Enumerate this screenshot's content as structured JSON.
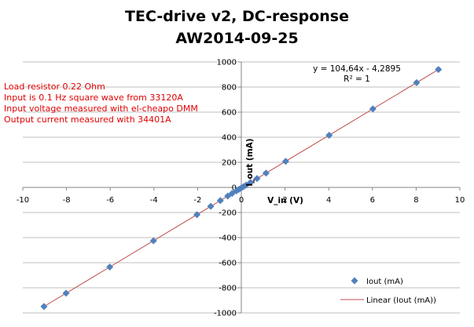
{
  "title": {
    "line1": "TEC-drive v2, DC-response",
    "line2": "AW2014-09-25"
  },
  "notes": [
    "Load resistor 0.22 Ohm",
    "Input is 0.1 Hz square wave from 33120A",
    "Input voltage measured with el-cheapo DMM",
    "Output current measured with 34401A"
  ],
  "trendline_label": {
    "equation": "y = 104,64x - 4,2895",
    "r_squared": "R² = 1"
  },
  "chart_data": {
    "type": "scatter",
    "xlabel": "V_in (V)",
    "ylabel": "I_out (mA)",
    "xlim": [
      -10,
      10
    ],
    "ylim": [
      -1000,
      1000
    ],
    "x_ticks": [
      -10,
      -8,
      -6,
      -4,
      -2,
      0,
      2,
      4,
      6,
      8,
      10
    ],
    "y_ticks": [
      -1000,
      -800,
      -600,
      -400,
      -200,
      0,
      200,
      400,
      600,
      800,
      1000
    ],
    "grid": "horizontal major",
    "legend_position": "bottom-right",
    "series": [
      {
        "name": "Iout (mA)",
        "marker": "diamond",
        "color": "#4f81bd",
        "x": [
          -9.03,
          -8.02,
          -6.02,
          -4.02,
          -2.03,
          -1.4,
          -0.96,
          -0.62,
          -0.42,
          -0.22,
          -0.1,
          0.0,
          0.1,
          0.22,
          0.42,
          0.72,
          1.13,
          2.03,
          4.02,
          6.02,
          8.02,
          9.02
        ],
        "y": [
          -949,
          -843,
          -634,
          -425,
          -217,
          -151,
          -105,
          -69,
          -48,
          -27,
          -15,
          -4,
          6,
          19,
          40,
          71,
          114,
          208,
          416,
          626,
          835,
          940
        ]
      }
    ],
    "trendline": {
      "name": "Linear (Iout (mA))",
      "color": "#c0504d",
      "slope": 104.64,
      "intercept": -4.2895
    }
  }
}
